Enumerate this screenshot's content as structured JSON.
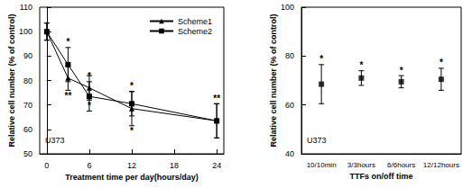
{
  "chart_data": [
    {
      "type": "line",
      "x_label": "Treatment time per day(hours/day)",
      "y_label": "Relative cell number (% of control)",
      "annotation": "U373",
      "x": [
        0,
        3,
        6,
        12,
        24
      ],
      "xlim": [
        -1,
        25
      ],
      "xticks": [
        0,
        6,
        12,
        18,
        24
      ],
      "ylim": [
        50,
        110
      ],
      "yticks": [
        50,
        60,
        70,
        80,
        90,
        100,
        110
      ],
      "legend": "upper right",
      "series": [
        {
          "name": "Scheme1",
          "color": "#000000",
          "marker": "triangle",
          "values": [
            100,
            81,
            77,
            68.5,
            63.5
          ],
          "error": [
            3.5,
            5,
            5,
            7,
            7
          ],
          "significance": [
            null,
            "**",
            "*",
            "*",
            null
          ]
        },
        {
          "name": "Scheme2",
          "color": "#000000",
          "marker": "square",
          "values": [
            100,
            86.5,
            73.5,
            70.5,
            63.5
          ],
          "error": [
            3.5,
            7,
            6,
            5,
            7
          ],
          "significance": [
            null,
            "*",
            "*",
            "*",
            "**"
          ]
        }
      ]
    },
    {
      "type": "scatter",
      "x_label": "TTFs on/off time",
      "y_label": "Relative cell number (% of control)",
      "annotation": "U373",
      "categories": [
        "10/10min",
        "3/3hours",
        "6/6hours",
        "12/12hours"
      ],
      "values": [
        68.5,
        71,
        69.5,
        70.5
      ],
      "error": [
        8,
        3,
        2.5,
        4.5
      ],
      "significance": [
        "*",
        "*",
        "*",
        "*"
      ],
      "color": "#000000",
      "marker": "square",
      "ylim": [
        40,
        100
      ],
      "yticks": [
        40,
        60,
        80,
        100
      ]
    }
  ]
}
